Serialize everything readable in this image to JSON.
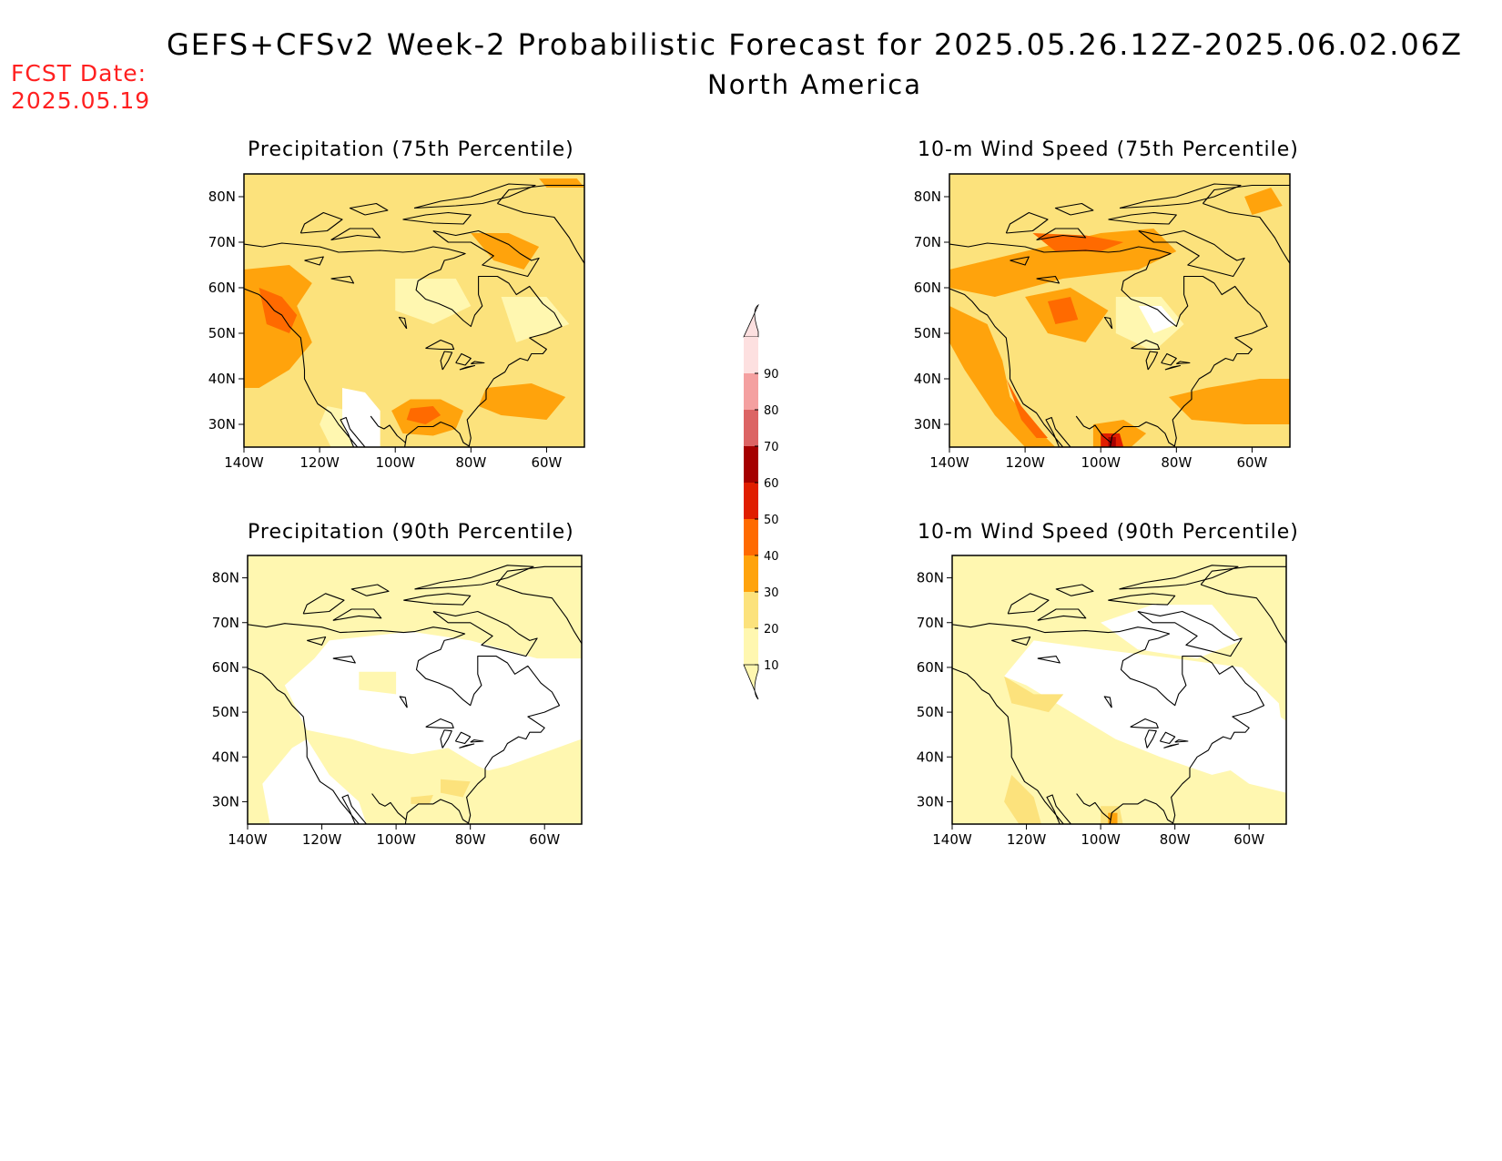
{
  "header": {
    "title": "GEFS+CFSv2 Week-2 Probabilistic Forecast for 2025.05.26.12Z-2025.06.02.06Z",
    "subtitle": "North America"
  },
  "fcst": {
    "label": "FCST Date:",
    "value": "2025.05.19"
  },
  "axes": {
    "lon_ticks": [
      "140W",
      "120W",
      "100W",
      "80W",
      "60W"
    ],
    "lat_ticks": [
      "80N",
      "70N",
      "60N",
      "50N",
      "40N",
      "30N"
    ],
    "lon_values": [
      -140,
      -120,
      -100,
      -80,
      -60
    ],
    "lat_values": [
      80,
      70,
      60,
      50,
      40,
      30
    ],
    "lon_range": [
      -140,
      -50
    ],
    "lat_range": [
      25,
      85
    ]
  },
  "colorbar": {
    "levels": [
      "10",
      "20",
      "30",
      "40",
      "50",
      "60",
      "70",
      "80",
      "90"
    ],
    "colors": [
      "#fff7b0",
      "#fce27c",
      "#ffa30c",
      "#ff6a00",
      "#e01e00",
      "#a50000",
      "#dc6464",
      "#f4a0a0",
      "#fde0e0"
    ]
  },
  "panels": [
    {
      "id": "precip75",
      "title": "Precipitation (75th Percentile)",
      "base": "#fce27c"
    },
    {
      "id": "wind75",
      "title": "10-m Wind Speed (75th Percentile)",
      "base": "#fce27c"
    },
    {
      "id": "precip90",
      "title": "Precipitation (90th Percentile)",
      "base": "#fff7b0"
    },
    {
      "id": "wind90",
      "title": "10-m Wind Speed (90th Percentile)",
      "base": "#fff7b0"
    }
  ]
}
